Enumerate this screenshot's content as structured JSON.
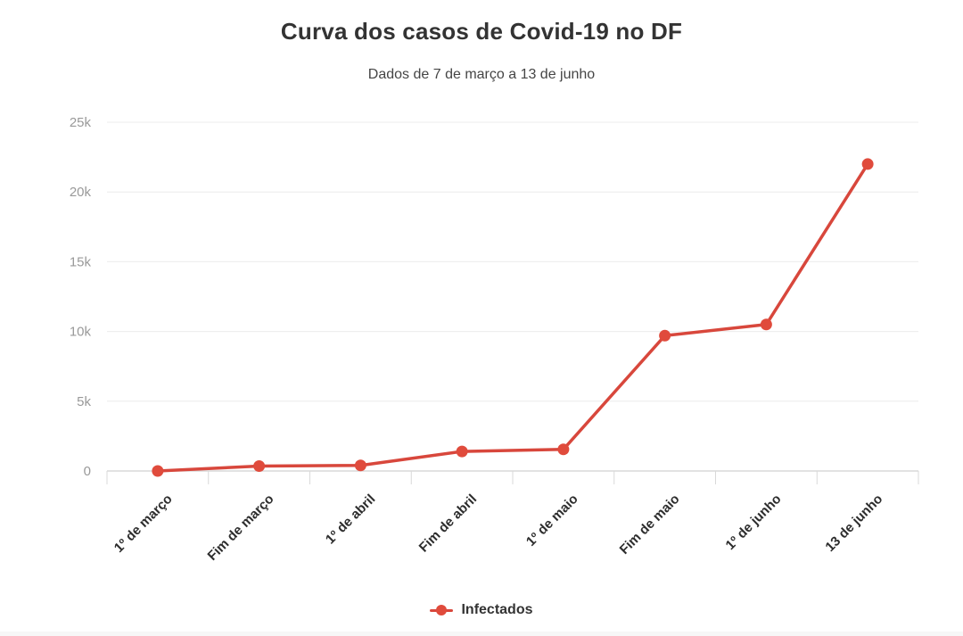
{
  "chart_data": {
    "type": "line",
    "title": "Curva dos casos de Covid-19 no DF",
    "subtitle": "Dados de 7 de março a 13 de junho",
    "categories": [
      "1º de março",
      "Fim de março",
      "1º de abril",
      "Fim de abril",
      "1º de maio",
      "Fim de maio",
      "1º de junho",
      "13 de junho"
    ],
    "series": [
      {
        "name": "Infectados",
        "values": [
          1,
          350,
          400,
          1400,
          1550,
          9700,
          10500,
          22000
        ]
      }
    ],
    "xlabel": "",
    "ylabel": "",
    "ylim": [
      0,
      25000
    ],
    "ytick_values": [
      0,
      5000,
      10000,
      15000,
      20000,
      25000
    ],
    "ytick_labels": [
      "0",
      "5k",
      "10k",
      "15k",
      "20k",
      "25k"
    ],
    "grid": true,
    "legend_position": "bottom",
    "colors": {
      "series": "#e04b3c",
      "line": "#d8473c",
      "gridline": "#ececec",
      "axis": "#d9d9d9",
      "ytick_text": "#999999",
      "xtick_text": "#2d2d2d",
      "title": "#333333",
      "subtitle": "#454545",
      "background": "#ffffff"
    }
  }
}
